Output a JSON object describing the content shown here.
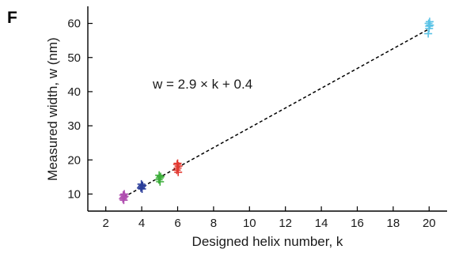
{
  "panel_label": "F",
  "chart_data": {
    "type": "scatter",
    "xlabel": "Designed helix number, k",
    "ylabel": "Measured width, w (nm)",
    "xlim": [
      1,
      21
    ],
    "ylim": [
      5,
      65
    ],
    "x_ticks": [
      2,
      4,
      6,
      8,
      10,
      12,
      14,
      16,
      18,
      20
    ],
    "x_tick_labels": [
      "2",
      "4",
      "6",
      "8",
      "10",
      "12",
      "14",
      "16",
      "18",
      "20"
    ],
    "y_ticks": [
      10,
      20,
      30,
      40,
      50,
      60
    ],
    "y_tick_labels": [
      "10",
      "20",
      "30",
      "40",
      "50",
      "60"
    ],
    "grid": false,
    "annotation": "w = 2.9 × k + 0.4",
    "fit_line": {
      "slope": 2.9,
      "intercept": 0.4,
      "x_range": [
        3,
        20
      ],
      "style": "dashed"
    },
    "series": [
      {
        "k": 3,
        "color": "#b04fb0",
        "points": [
          [
            2.95,
            8.6
          ],
          [
            3.0,
            9.0
          ],
          [
            3.05,
            9.3
          ],
          [
            2.97,
            9.7
          ],
          [
            3.03,
            10.0
          ],
          [
            3.0,
            8.2
          ]
        ]
      },
      {
        "k": 4,
        "color": "#2b3e9a",
        "points": [
          [
            3.95,
            11.8
          ],
          [
            4.0,
            12.2
          ],
          [
            4.05,
            12.5
          ],
          [
            3.98,
            12.9
          ],
          [
            4.02,
            11.5
          ]
        ]
      },
      {
        "k": 5,
        "color": "#3cae3a",
        "points": [
          [
            4.95,
            14.2
          ],
          [
            5.0,
            14.7
          ],
          [
            5.05,
            15.1
          ],
          [
            4.97,
            15.5
          ],
          [
            5.02,
            13.6
          ]
        ]
      },
      {
        "k": 6,
        "color": "#e23a32",
        "points": [
          [
            5.95,
            17.0
          ],
          [
            6.0,
            17.6
          ],
          [
            6.05,
            18.2
          ],
          [
            5.97,
            18.7
          ],
          [
            6.03,
            16.4
          ],
          [
            6.0,
            19.0
          ]
        ]
      },
      {
        "k": 20,
        "color": "#5bc3e6",
        "points": [
          [
            19.95,
            57.0
          ],
          [
            20.0,
            58.5
          ],
          [
            20.05,
            59.5
          ],
          [
            19.97,
            60.0
          ],
          [
            20.03,
            60.5
          ],
          [
            20.0,
            59.2
          ]
        ]
      }
    ]
  }
}
